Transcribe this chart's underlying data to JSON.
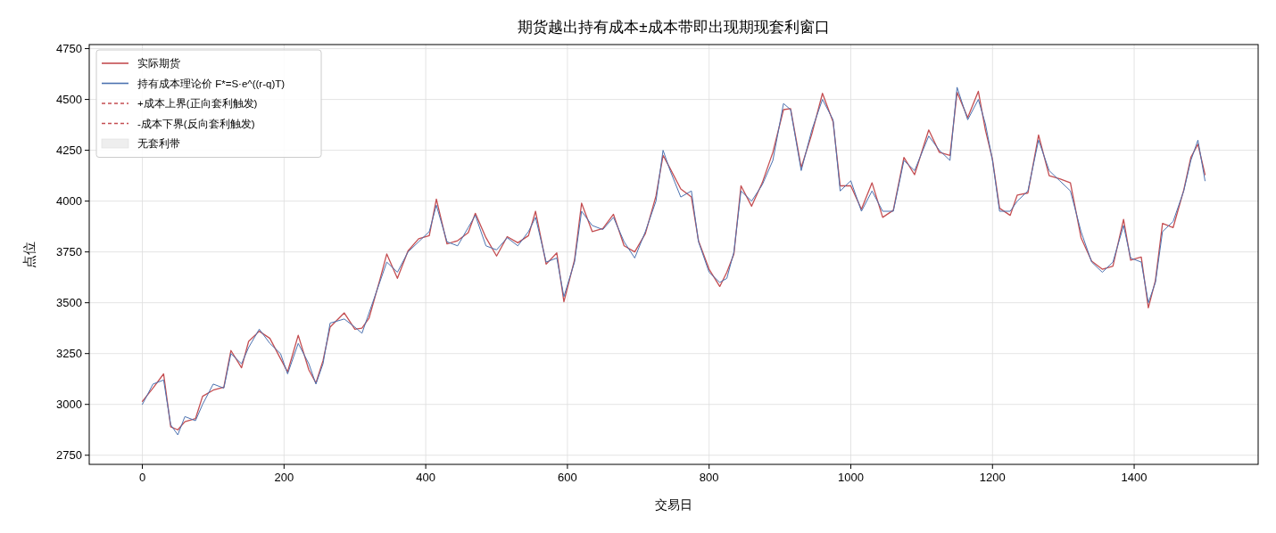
{
  "chart_data": {
    "type": "line",
    "title": "期货越出持有成本±成本带即出现期现套利窗口",
    "xlabel": "交易日",
    "ylabel": "点位",
    "xlim": [
      -75,
      1575
    ],
    "ylim": [
      2705,
      4770
    ],
    "xticks": [
      0,
      200,
      400,
      600,
      800,
      1000,
      1200,
      1400
    ],
    "yticks": [
      2750,
      3000,
      3250,
      3500,
      3750,
      4000,
      4250,
      4500,
      4750
    ],
    "grid": true,
    "legend": "top left",
    "x": [
      0,
      15,
      30,
      40,
      50,
      60,
      75,
      85,
      100,
      115,
      125,
      140,
      150,
      165,
      180,
      195,
      205,
      220,
      235,
      245,
      255,
      265,
      285,
      300,
      310,
      320,
      335,
      345,
      360,
      375,
      390,
      405,
      415,
      430,
      445,
      460,
      470,
      485,
      500,
      515,
      530,
      545,
      555,
      570,
      585,
      595,
      610,
      620,
      635,
      650,
      665,
      680,
      695,
      710,
      725,
      735,
      745,
      760,
      775,
      785,
      800,
      815,
      825,
      835,
      845,
      860,
      875,
      890,
      905,
      915,
      930,
      945,
      960,
      975,
      985,
      1000,
      1015,
      1030,
      1045,
      1060,
      1075,
      1090,
      1110,
      1125,
      1140,
      1150,
      1165,
      1180,
      1190,
      1200,
      1210,
      1225,
      1235,
      1250,
      1265,
      1280,
      1295,
      1310,
      1325,
      1340,
      1355,
      1370,
      1385,
      1395,
      1410,
      1420,
      1430,
      1440,
      1455,
      1470,
      1480,
      1490,
      1500
    ],
    "series": [
      {
        "name": "实际期货",
        "color": "#c44e52",
        "line_style": "solid",
        "values": [
          3015,
          3080,
          3150,
          2890,
          2875,
          2915,
          2930,
          3040,
          3070,
          3085,
          3265,
          3180,
          3310,
          3360,
          3325,
          3225,
          3160,
          3340,
          3170,
          3105,
          3215,
          3380,
          3450,
          3370,
          3375,
          3425,
          3610,
          3740,
          3620,
          3755,
          3815,
          3830,
          4010,
          3790,
          3805,
          3845,
          3940,
          3820,
          3730,
          3825,
          3795,
          3830,
          3950,
          3690,
          3745,
          3505,
          3710,
          3990,
          3850,
          3865,
          3935,
          3780,
          3750,
          3840,
          4025,
          4225,
          4160,
          4060,
          4020,
          3805,
          3665,
          3580,
          3650,
          3740,
          4075,
          3975,
          4090,
          4240,
          4450,
          4455,
          4165,
          4330,
          4530,
          4390,
          4075,
          4075,
          3960,
          4090,
          3920,
          3955,
          4215,
          4130,
          4350,
          4240,
          4225,
          4535,
          4410,
          4540,
          4350,
          4205,
          3965,
          3930,
          4030,
          4040,
          4325,
          4125,
          4110,
          4090,
          3820,
          3705,
          3665,
          3680,
          3910,
          3710,
          3725,
          3475,
          3610,
          3890,
          3870,
          4055,
          4215,
          4280,
          4130
        ]
      },
      {
        "name": "持有成本理论价 F*=S·e^((r-q)T)",
        "color": "#4c72b0",
        "line_style": "solid",
        "values": [
          3000,
          3100,
          3120,
          2900,
          2850,
          2940,
          2920,
          3000,
          3100,
          3080,
          3250,
          3200,
          3280,
          3370,
          3300,
          3250,
          3150,
          3300,
          3200,
          3100,
          3200,
          3400,
          3420,
          3380,
          3350,
          3450,
          3600,
          3700,
          3650,
          3750,
          3800,
          3850,
          3980,
          3800,
          3780,
          3870,
          3930,
          3780,
          3760,
          3820,
          3780,
          3850,
          3920,
          3700,
          3720,
          3530,
          3700,
          3950,
          3880,
          3860,
          3920,
          3800,
          3720,
          3850,
          4000,
          4250,
          4150,
          4020,
          4050,
          3800,
          3650,
          3600,
          3620,
          3750,
          4050,
          4000,
          4080,
          4200,
          4480,
          4450,
          4150,
          4350,
          4500,
          4400,
          4050,
          4100,
          3950,
          4050,
          3950,
          3950,
          4200,
          4150,
          4320,
          4250,
          4200,
          4560,
          4400,
          4500,
          4380,
          4200,
          3950,
          3950,
          4000,
          4050,
          4300,
          4150,
          4100,
          4050,
          3850,
          3700,
          3650,
          3700,
          3880,
          3720,
          3700,
          3500,
          3600,
          3850,
          3900,
          4050,
          4200,
          4300,
          4100
        ]
      },
      {
        "name": "+成本上界(正向套利触发)",
        "color": "#c44e52",
        "line_style": "dashed",
        "values": [
          null,
          null,
          null,
          null,
          null,
          null,
          null,
          null,
          null,
          null,
          null,
          null,
          null,
          null,
          null,
          null,
          null,
          null,
          null,
          null,
          null,
          null,
          null,
          null,
          null,
          null,
          null,
          null,
          null,
          null,
          null,
          null,
          null,
          null,
          null,
          null,
          null,
          null,
          null,
          null,
          null,
          null,
          null,
          null,
          null,
          null,
          null,
          null,
          null,
          null,
          null,
          null,
          null,
          null,
          null,
          null,
          null,
          null,
          null,
          null,
          null,
          null,
          null,
          null,
          null,
          null,
          null,
          null,
          null,
          null,
          null,
          null,
          null,
          null,
          null,
          null,
          null,
          null,
          null,
          null,
          null,
          null,
          null,
          null,
          null,
          null,
          null,
          null,
          null,
          null,
          null,
          null,
          null,
          null,
          null,
          null,
          null,
          null,
          null,
          null,
          null,
          null,
          null,
          null,
          null,
          null,
          null,
          null,
          null,
          null,
          null,
          null,
          null
        ]
      },
      {
        "name": "-成本下界(反向套利触发)",
        "color": "#c44e52",
        "line_style": "dashed",
        "values": [
          null,
          null,
          null,
          null,
          null,
          null,
          null,
          null,
          null,
          null,
          null,
          null,
          null,
          null,
          null,
          null,
          null,
          null,
          null,
          null,
          null,
          null,
          null,
          null,
          null,
          null,
          null,
          null,
          null,
          null,
          null,
          null,
          null,
          null,
          null,
          null,
          null,
          null,
          null,
          null,
          null,
          null,
          null,
          null,
          null,
          null,
          null,
          null,
          null,
          null,
          null,
          null,
          null,
          null,
          null,
          null,
          null,
          null,
          null,
          null,
          null,
          null,
          null,
          null,
          null,
          null,
          null,
          null,
          null,
          null,
          null,
          null,
          null,
          null,
          null,
          null,
          null,
          null,
          null,
          null,
          null,
          null,
          null,
          null,
          null,
          null,
          null,
          null,
          null,
          null,
          null,
          null,
          null,
          null,
          null,
          null,
          null,
          null,
          null,
          null,
          null,
          null,
          null,
          null,
          null,
          null,
          null,
          null,
          null,
          null,
          null,
          null,
          null
        ]
      },
      {
        "name": "无套利带",
        "type": "area",
        "color": "#eeeeee",
        "values": [
          null,
          null,
          null,
          null,
          null,
          null,
          null,
          null,
          null,
          null,
          null,
          null,
          null,
          null,
          null,
          null,
          null,
          null,
          null,
          null,
          null,
          null,
          null,
          null,
          null,
          null,
          null,
          null,
          null,
          null,
          null,
          null,
          null,
          null,
          null,
          null,
          null,
          null,
          null,
          null,
          null,
          null,
          null,
          null,
          null,
          null,
          null,
          null,
          null,
          null,
          null,
          null,
          null,
          null,
          null,
          null,
          null,
          null,
          null,
          null,
          null,
          null,
          null,
          null,
          null,
          null,
          null,
          null,
          null,
          null,
          null,
          null,
          null,
          null,
          null,
          null,
          null,
          null,
          null,
          null,
          null,
          null,
          null,
          null,
          null,
          null,
          null,
          null,
          null,
          null,
          null,
          null,
          null,
          null,
          null,
          null,
          null,
          null,
          null,
          null,
          null,
          null,
          null,
          null,
          null,
          null,
          null,
          null,
          null,
          null,
          null,
          null,
          null
        ]
      }
    ]
  }
}
